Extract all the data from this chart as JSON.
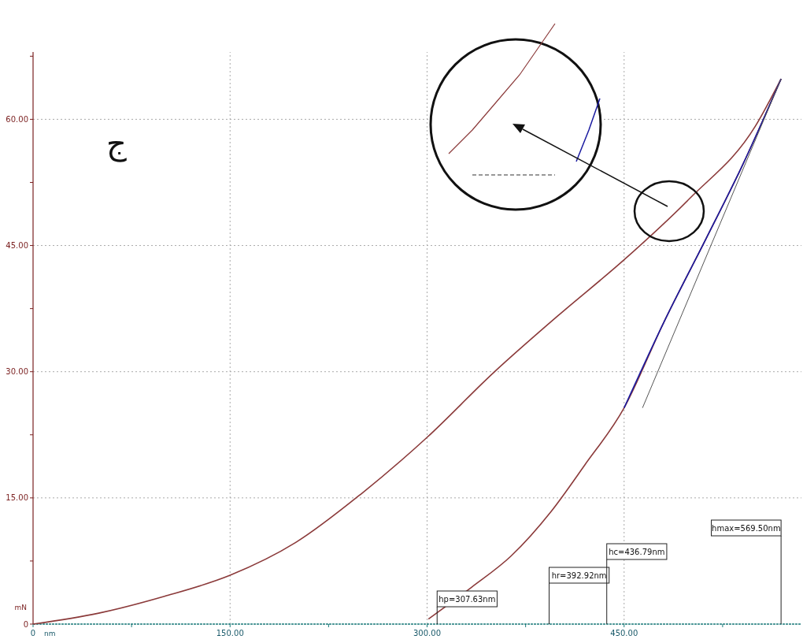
{
  "chart_data": {
    "type": "line",
    "xlabel": "nm",
    "ylabel": "mN",
    "xlim": [
      0,
      585
    ],
    "ylim": [
      0,
      68
    ],
    "xticks": [
      {
        "value": 0,
        "label": "0"
      },
      {
        "value": 75,
        "label": null
      },
      {
        "value": 150,
        "label": "150.00"
      },
      {
        "value": 225,
        "label": null
      },
      {
        "value": 300,
        "label": "300.00"
      },
      {
        "value": 375,
        "label": null
      },
      {
        "value": 450,
        "label": "450.00"
      },
      {
        "value": 525,
        "label": null
      }
    ],
    "yticks": [
      {
        "value": 0,
        "label": "0"
      },
      {
        "value": 7.5,
        "label": null
      },
      {
        "value": 15,
        "label": "15.00"
      },
      {
        "value": 22.5,
        "label": null
      },
      {
        "value": 30,
        "label": "30.00"
      },
      {
        "value": 37.5,
        "label": null
      },
      {
        "value": 45,
        "label": "45.00"
      },
      {
        "value": 52.5,
        "label": null
      },
      {
        "value": 60,
        "label": "60.00"
      },
      {
        "value": 67.5,
        "label": null
      }
    ],
    "grid": true,
    "marker": "none",
    "line_style": "solid",
    "series": [
      {
        "color": "#8b3a3a",
        "x": [
          0,
          50,
          100,
          150,
          200,
          250,
          300,
          350,
          400,
          450,
          500,
          550,
          569.5
        ],
        "values": [
          0,
          1.3,
          3.3,
          5.8,
          9.7,
          15.5,
          22.2,
          29.8,
          36.7,
          43.3,
          50.6,
          59.2,
          64.8
        ]
      },
      {
        "color": "#8b3a3a",
        "x": [
          301,
          334,
          364,
          394,
          420,
          450,
          480,
          513,
          540,
          569.5
        ],
        "values": [
          0.6,
          4.4,
          8.1,
          13.3,
          18.9,
          25.7,
          35.8,
          46,
          54.5,
          64.8
        ]
      },
      {
        "color": "#1a1aa0",
        "x": [
          450,
          480,
          513,
          540,
          569.5
        ],
        "values": [
          25.7,
          35.8,
          46,
          54.5,
          64.8
        ]
      },
      {
        "color": "#555555",
        "x": [
          464,
          569.5
        ],
        "values": [
          25.7,
          64.8
        ]
      }
    ],
    "annotations": [
      "ج"
    ],
    "ref_lines": [
      {
        "axis": "x",
        "value": 307.63,
        "label": "hp=307.63nm"
      },
      {
        "axis": "x",
        "value": 392.92,
        "label": "hr=392.92nm"
      },
      {
        "axis": "x",
        "value": 436.79,
        "label": "hc=436.79nm"
      },
      {
        "axis": "x",
        "value": 569.5,
        "label": "hmax=569.50nm"
      }
    ]
  }
}
